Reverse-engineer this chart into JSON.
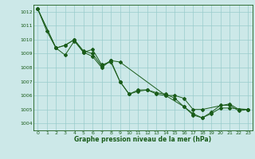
{
  "title": "Graphe pression niveau de la mer (hPa)",
  "xlim": [
    -0.5,
    23.5
  ],
  "ylim": [
    1003.5,
    1012.5
  ],
  "xticks": [
    0,
    1,
    2,
    3,
    4,
    5,
    6,
    7,
    8,
    9,
    10,
    11,
    12,
    13,
    14,
    15,
    16,
    17,
    18,
    19,
    20,
    21,
    22,
    23
  ],
  "yticks": [
    1004,
    1005,
    1006,
    1007,
    1008,
    1009,
    1010,
    1011,
    1012
  ],
  "bg_color": "#cce8e8",
  "line_color": "#1a5c1a",
  "grid_color": "#99cccc",
  "figsize": [
    3.2,
    2.0
  ],
  "dpi": 100,
  "series1": [
    [
      0,
      1012.2
    ],
    [
      1,
      1010.6
    ],
    [
      2,
      1009.4
    ],
    [
      3,
      1009.6
    ],
    [
      4,
      1010.0
    ],
    [
      5,
      1009.1
    ],
    [
      6,
      1008.8
    ],
    [
      7,
      1008.0
    ],
    [
      8,
      1008.5
    ],
    [
      9,
      1007.0
    ],
    [
      10,
      1006.1
    ],
    [
      11,
      1006.3
    ],
    [
      12,
      1006.4
    ],
    [
      13,
      1006.2
    ],
    [
      14,
      1006.1
    ],
    [
      15,
      1005.8
    ],
    [
      16,
      1005.2
    ],
    [
      17,
      1004.6
    ],
    [
      18,
      1004.4
    ],
    [
      19,
      1004.8
    ],
    [
      20,
      1005.3
    ],
    [
      21,
      1005.3
    ],
    [
      22,
      1004.9
    ],
    [
      23,
      1005.0
    ]
  ],
  "series2": [
    [
      0,
      1012.2
    ],
    [
      2,
      1009.4
    ],
    [
      3,
      1009.6
    ],
    [
      4,
      1010.0
    ],
    [
      5,
      1009.2
    ],
    [
      6,
      1009.0
    ],
    [
      7,
      1008.1
    ],
    [
      8,
      1008.5
    ],
    [
      9,
      1008.4
    ],
    [
      14,
      1006.0
    ],
    [
      15,
      1006.0
    ],
    [
      16,
      1005.8
    ],
    [
      17,
      1005.0
    ],
    [
      18,
      1005.0
    ],
    [
      21,
      1005.4
    ],
    [
      22,
      1005.0
    ],
    [
      23,
      1005.0
    ]
  ],
  "series3": [
    [
      0,
      1012.2
    ],
    [
      2,
      1009.4
    ],
    [
      3,
      1008.9
    ],
    [
      4,
      1009.9
    ],
    [
      5,
      1009.1
    ],
    [
      6,
      1009.3
    ],
    [
      7,
      1008.2
    ],
    [
      8,
      1008.4
    ],
    [
      9,
      1007.0
    ],
    [
      10,
      1006.1
    ],
    [
      11,
      1006.4
    ],
    [
      12,
      1006.4
    ],
    [
      13,
      1006.1
    ],
    [
      14,
      1006.0
    ],
    [
      16,
      1005.2
    ],
    [
      17,
      1004.7
    ],
    [
      18,
      1004.4
    ],
    [
      19,
      1004.7
    ],
    [
      20,
      1005.1
    ],
    [
      21,
      1005.1
    ],
    [
      23,
      1005.0
    ]
  ]
}
